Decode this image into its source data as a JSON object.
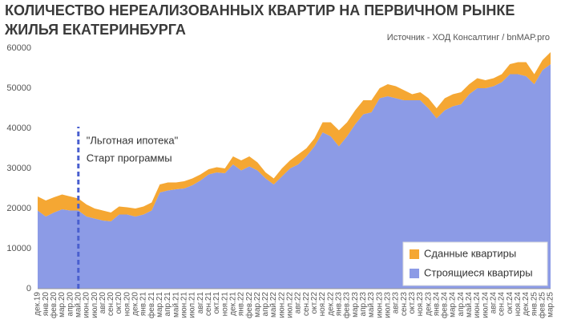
{
  "chart_data": {
    "type": "stacked_area",
    "title": [
      "КОЛИЧЕСТВО НЕРЕАЛИЗОВАННЫХ КВАРТИР НА ПЕРВИЧНОМ РЫНКЕ",
      "ЖИЛЬЯ ЕКАТЕРИНБУРГА"
    ],
    "source": "Источник - ХОД Консалтинг / bnMAP.pro",
    "categories": [
      "дек.19",
      "янв.20",
      "фев.20",
      "мар.20",
      "апр.20",
      "май.20",
      "июн.20",
      "июл.20",
      "авг.20",
      "сен.20",
      "окт.20",
      "ноя.20",
      "дек.20",
      "янв.21",
      "фев.21",
      "мар.21",
      "апр.21",
      "май.21",
      "июн.21",
      "июл.21",
      "авг.21",
      "сен.21",
      "окт.21",
      "ноя.21",
      "дек.21",
      "янв.22",
      "фев.22",
      "мар.22",
      "апр.22",
      "май.22",
      "июн.22",
      "июл.22",
      "авг.22",
      "сен.22",
      "окт.22",
      "ноя.22",
      "дек.22",
      "янв.23",
      "фев.23",
      "мар.23",
      "апр.23",
      "май.23",
      "июн.23",
      "июл.23",
      "авг.23",
      "сен.23",
      "окт.23",
      "ноя.23",
      "дек.23",
      "янв.24",
      "фев.24",
      "мар.24",
      "апр.24",
      "май.24",
      "июн.24",
      "июл.24",
      "авг.24",
      "сен.24",
      "окт.24",
      "ноя.24",
      "дек.24",
      "янв.25",
      "фев.25",
      "мар.25"
    ],
    "series": [
      {
        "name": "Сданные квартиры",
        "color": "#f5a733",
        "values": [
          3500,
          4000,
          3800,
          3700,
          3500,
          3000,
          3000,
          2500,
          2500,
          2200,
          2000,
          1800,
          2000,
          2000,
          2000,
          2000,
          2000,
          1700,
          1800,
          1700,
          1500,
          1300,
          1300,
          1200,
          2000,
          2500,
          2500,
          2000,
          1500,
          1500,
          2000,
          2000,
          2500,
          2000,
          2000,
          2500,
          3500,
          4000,
          3500,
          3500,
          3500,
          3000,
          2500,
          3000,
          3000,
          2500,
          1500,
          2000,
          2500,
          2500,
          3000,
          3000,
          3000,
          2500,
          2500,
          2000,
          2000,
          2000,
          2500,
          3000,
          3500,
          2500,
          2500,
          3000
        ]
      },
      {
        "name": "Строящиеся квартиры",
        "color": "#8c9be6",
        "values": [
          19500,
          18000,
          19000,
          19800,
          19500,
          19500,
          18000,
          17500,
          17000,
          16800,
          18500,
          18500,
          18000,
          18500,
          19500,
          24000,
          24500,
          24800,
          25000,
          25800,
          27000,
          28500,
          29000,
          28800,
          31000,
          29500,
          30500,
          29500,
          27500,
          26000,
          28000,
          30000,
          31000,
          33000,
          35500,
          39000,
          38000,
          35500,
          38000,
          41000,
          43500,
          44000,
          47500,
          48000,
          47500,
          47000,
          47000,
          47000,
          45000,
          42500,
          44500,
          45500,
          46000,
          48500,
          50000,
          50000,
          50500,
          51500,
          53500,
          53500,
          53000,
          51000,
          54500,
          56000
        ]
      }
    ],
    "ylim": [
      0,
      60000
    ],
    "yticks": [
      0,
      10000,
      20000,
      30000,
      40000,
      50000,
      60000
    ],
    "grid": false,
    "annotation": {
      "category": "май.20",
      "lines": [
        "\"Льготная ипотека\"",
        "Старт программы"
      ],
      "color": "#4a5fcf"
    },
    "legend": "lower right"
  }
}
